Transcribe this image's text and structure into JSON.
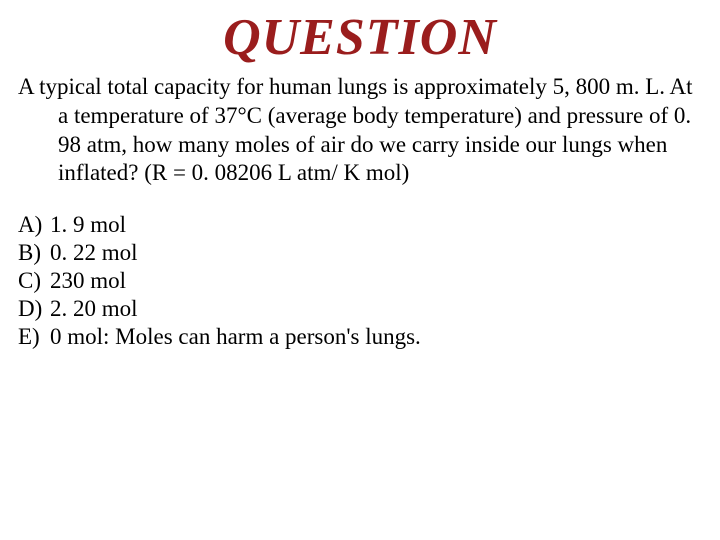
{
  "title": {
    "text": "QUESTION",
    "color": "#9a1d1d",
    "fontsize": 52
  },
  "question": {
    "text": "A typical total capacity for human lungs is approximately 5, 800 m. L. At a temperature of 37°C (average body temperature) and pressure of 0. 98 atm, how many moles of air do we carry inside our lungs when inflated? (R = 0. 08206 L atm/ K mol)",
    "fontsize": 23,
    "color": "#000000"
  },
  "options": {
    "fontsize": 23,
    "color": "#000000",
    "items": [
      {
        "letter": "A)",
        "text": "1. 9 mol"
      },
      {
        "letter": "B)",
        "text": "0. 22 mol"
      },
      {
        "letter": "C)",
        "text": "230 mol"
      },
      {
        "letter": "D)",
        "text": "2. 20 mol"
      },
      {
        "letter": "E)",
        "text": "0 mol: Moles can harm a person's lungs."
      }
    ]
  }
}
